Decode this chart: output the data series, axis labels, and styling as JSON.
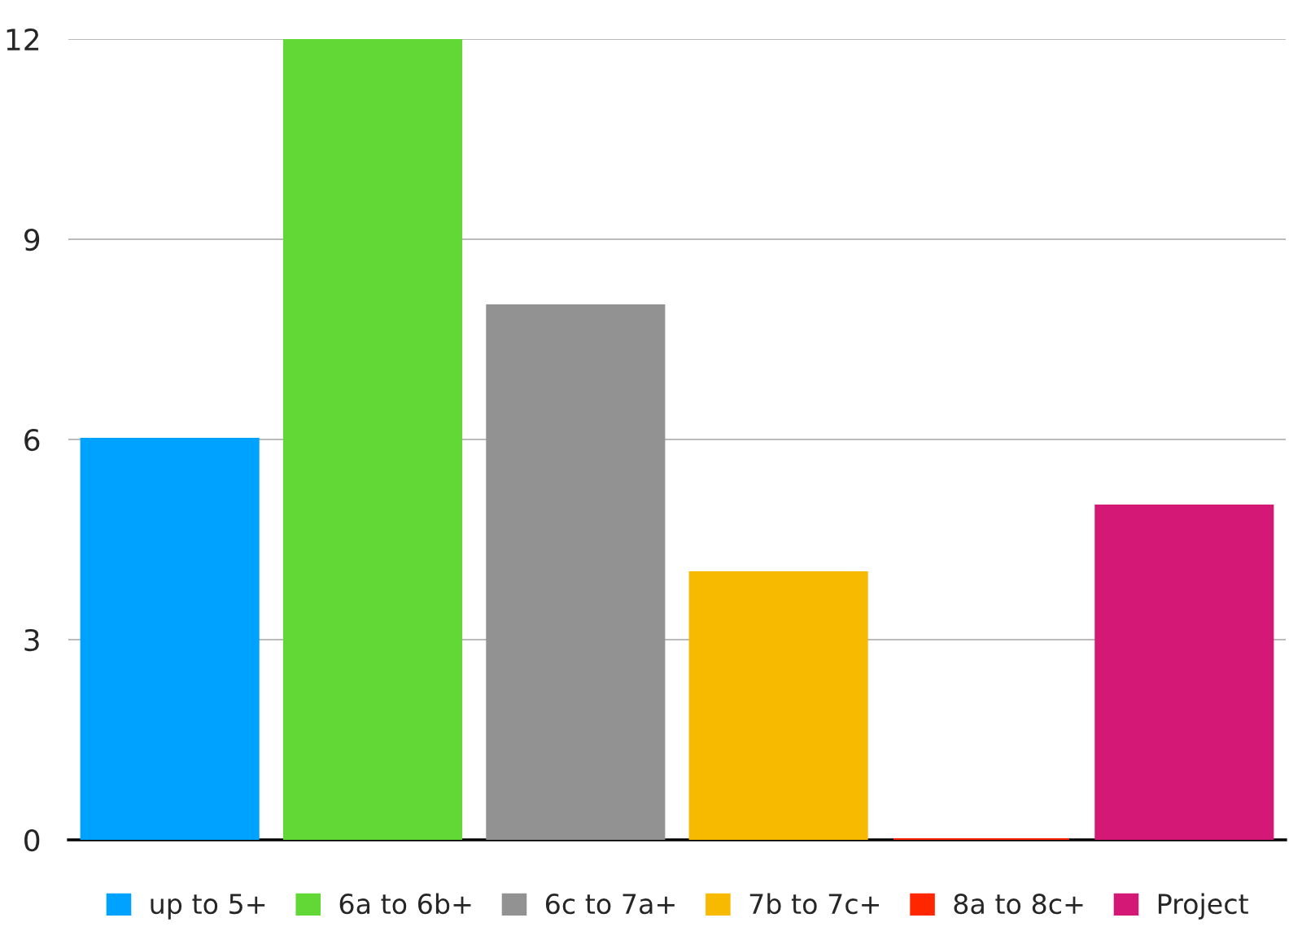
{
  "chart_data": {
    "type": "bar",
    "categories": [
      null
    ],
    "series": [
      {
        "name": "up to 5+",
        "color": "#00a2ff",
        "values": [
          6
        ]
      },
      {
        "name": "6a to 6b+",
        "color": "#61d836",
        "values": [
          12
        ]
      },
      {
        "name": "6c to 7a+",
        "color": "#929292",
        "values": [
          8
        ]
      },
      {
        "name": "7b to 7c+",
        "color": "#f8ba00",
        "values": [
          4
        ]
      },
      {
        "name": "8a to 8c+",
        "color": "#ff2600",
        "values": [
          0
        ]
      },
      {
        "name": "Project",
        "color": "#d41876",
        "values": [
          5
        ]
      }
    ],
    "ylim": [
      0,
      12
    ],
    "yticks": [
      0,
      3,
      6,
      9,
      12
    ],
    "grid": "y",
    "legend": "bottom"
  }
}
